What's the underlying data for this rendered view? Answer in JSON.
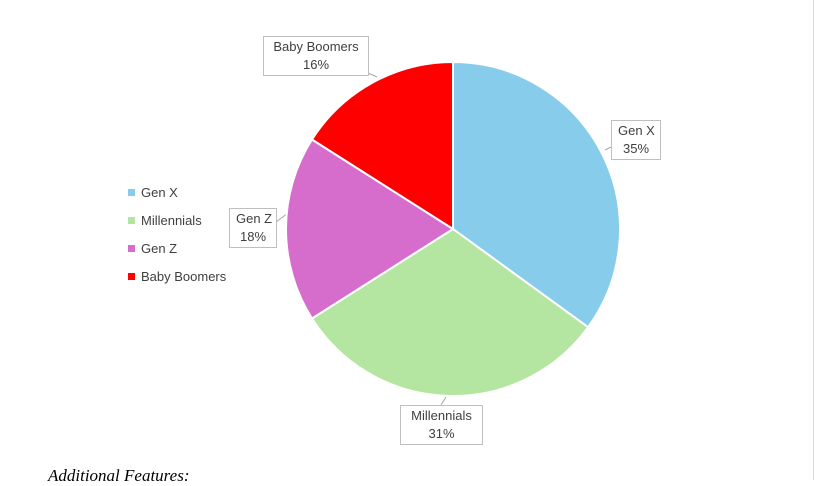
{
  "chart_data": {
    "type": "pie",
    "categories": [
      "Gen X",
      "Millennials",
      "Gen Z",
      "Baby Boomers"
    ],
    "values": [
      35,
      31,
      18,
      16
    ],
    "data_labels": [
      "35%",
      "31%",
      "18%",
      "16%"
    ],
    "colors": [
      "#87CCEB",
      "#B5E6A1",
      "#D66DCC",
      "#FF0000"
    ],
    "legend": "left",
    "start": "12 o'clock, clockwise"
  },
  "legend": {
    "items": [
      {
        "label": "Gen X",
        "color": "#87CCEB"
      },
      {
        "label": "Millennials",
        "color": "#B5E6A1"
      },
      {
        "label": "Gen Z",
        "color": "#D66DCC"
      },
      {
        "label": "Baby Boomers",
        "color": "#FF0000"
      }
    ]
  },
  "callouts": {
    "genx": {
      "name": "Gen X",
      "value": "35%"
    },
    "millennials": {
      "name": "Millennials",
      "value": "31%"
    },
    "genz": {
      "name": "Gen Z",
      "value": "18%"
    },
    "boomers": {
      "name": "Baby Boomers",
      "value": "16%"
    }
  },
  "footer": {
    "text": "Additional Features:"
  }
}
